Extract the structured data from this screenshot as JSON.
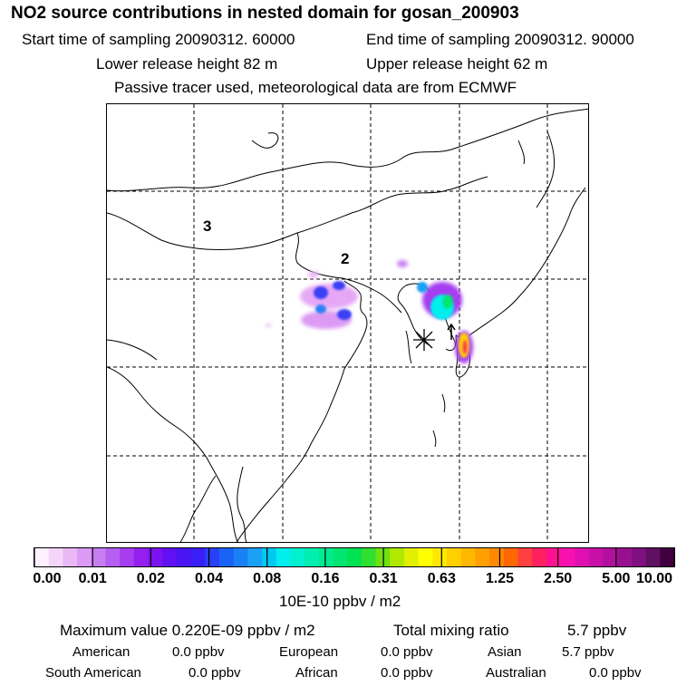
{
  "header": {
    "title": "NO2 source contributions in nested domain for gosan_200903",
    "start_time": "Start time of sampling 20090312. 60000",
    "end_time": "End time of sampling 20090312. 90000",
    "lower_release": "Lower release height   82 m",
    "upper_release": "Upper release height   62 m",
    "tracer_note": "Passive tracer used, meteorological data are from ECMWF"
  },
  "map": {
    "region_labels": [
      "3",
      "2"
    ],
    "source_marker": "asterisk-marker"
  },
  "colorbar": {
    "ticks": [
      "0.00",
      "0.01",
      "0.02",
      "0.04",
      "0.08",
      "0.16",
      "0.31",
      "0.63",
      "1.25",
      "2.50",
      "5.00",
      "10.00"
    ],
    "unit": "10E-10 ppbv / m2",
    "colors": [
      "#fff0ff",
      "#f5d6fb",
      "#eab8f7",
      "#dc9af4",
      "#c77ef2",
      "#b65ef2",
      "#a63df0",
      "#9420f0",
      "#7d12f0",
      "#6010f2",
      "#4a14f4",
      "#3a1ef6",
      "#2a40f6",
      "#1a62f6",
      "#1a80f6",
      "#1aa0f4",
      "#00c8f4",
      "#00eeee",
      "#00f0d0",
      "#00eeb0",
      "#00ea90",
      "#00e670",
      "#00e250",
      "#30e030",
      "#70e010",
      "#b0e800",
      "#e0f000",
      "#ffff00",
      "#ffe800",
      "#ffd000",
      "#ffb800",
      "#ffa000",
      "#ff8800",
      "#ff6800",
      "#ff4040",
      "#ff2060",
      "#ff1090",
      "#f810b0",
      "#e010b0",
      "#c810a8",
      "#b0109c",
      "#981090",
      "#801080",
      "#601060",
      "#400040"
    ]
  },
  "summary": {
    "max_value": "Maximum value  0.220E-09 ppbv / m2",
    "total_mixing": "Total mixing ratio",
    "total_value": "5.7 ppbv",
    "american_label": "American",
    "american_value": "0.0 ppbv",
    "european_label": "European",
    "european_value": "0.0 ppbv",
    "asian_label": "Asian",
    "asian_value": "5.7 ppbv",
    "south_american_label": "South American",
    "south_american_value": "0.0 ppbv",
    "african_label": "African",
    "african_value": "0.0 ppbv",
    "australian_label": "Australian",
    "australian_value": "0.0 ppbv"
  }
}
